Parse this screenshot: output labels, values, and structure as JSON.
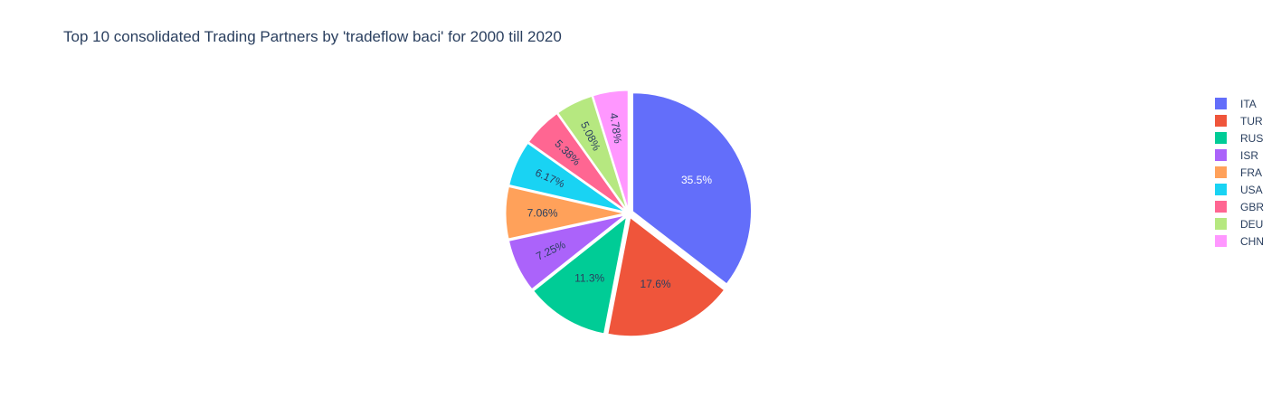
{
  "chart_data": {
    "type": "pie",
    "title": "Top 10 consolidated Trading Partners by 'tradeflow baci' for 2000 till 2020",
    "categories": [
      "ITA",
      "TUR",
      "RUS",
      "ISR",
      "FRA",
      "USA",
      "GBR",
      "DEU",
      "CHN"
    ],
    "values": [
      35.5,
      17.6,
      11.3,
      7.25,
      7.06,
      6.17,
      5.38,
      5.08,
      4.78
    ],
    "labels": [
      "35.5%",
      "17.6%",
      "11.3%",
      "7.25%",
      "7.06%",
      "6.17%",
      "5.38%",
      "5.08%",
      "4.78%"
    ],
    "colors": [
      "#636efa",
      "#EF553B",
      "#00cc96",
      "#ab63fa",
      "#FFA15A",
      "#19d3f3",
      "#FF6692",
      "#B6E880",
      "#FF97FF"
    ],
    "label_colors": [
      "#ffffff",
      "#2a3f5f",
      "#2a3f5f",
      "#2a3f5f",
      "#2a3f5f",
      "#2a3f5f",
      "#2a3f5f",
      "#2a3f5f",
      "#2a3f5f"
    ],
    "legend_position": "right",
    "exploded": true
  }
}
